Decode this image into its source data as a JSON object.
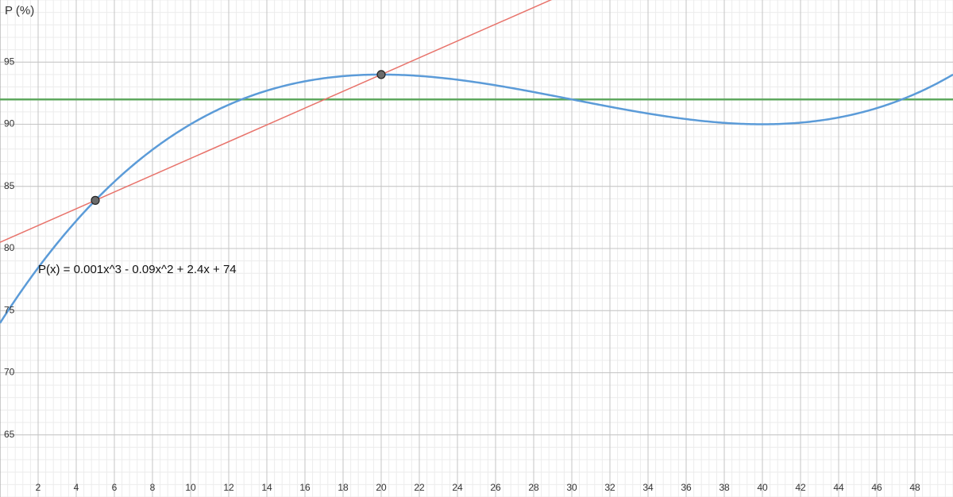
{
  "chart_data": {
    "type": "function",
    "y_label": "P (%)",
    "function_label": "P(x) = 0.001x^3 - 0.09x^2 + 2.4x + 74",
    "coefficients": [
      0.001,
      -0.09,
      2.4,
      74
    ],
    "color": "#5b9bd8",
    "points": [
      {
        "x": 5,
        "y": 83.875
      },
      {
        "x": 20,
        "y": 94
      }
    ],
    "secant_color": "#e8736b",
    "horizontal_line": 92,
    "horizontal_color": "#5ea85e",
    "xlim": [
      0,
      50
    ],
    "ylim": [
      60,
      100
    ],
    "xticks": [
      2,
      4,
      6,
      8,
      10,
      12,
      14,
      16,
      18,
      20,
      22,
      24,
      26,
      28,
      30,
      32,
      34,
      36,
      38,
      40,
      42,
      44,
      46,
      48
    ],
    "yticks": [
      65,
      70,
      75,
      80,
      85,
      90,
      95
    ],
    "grid": true
  }
}
